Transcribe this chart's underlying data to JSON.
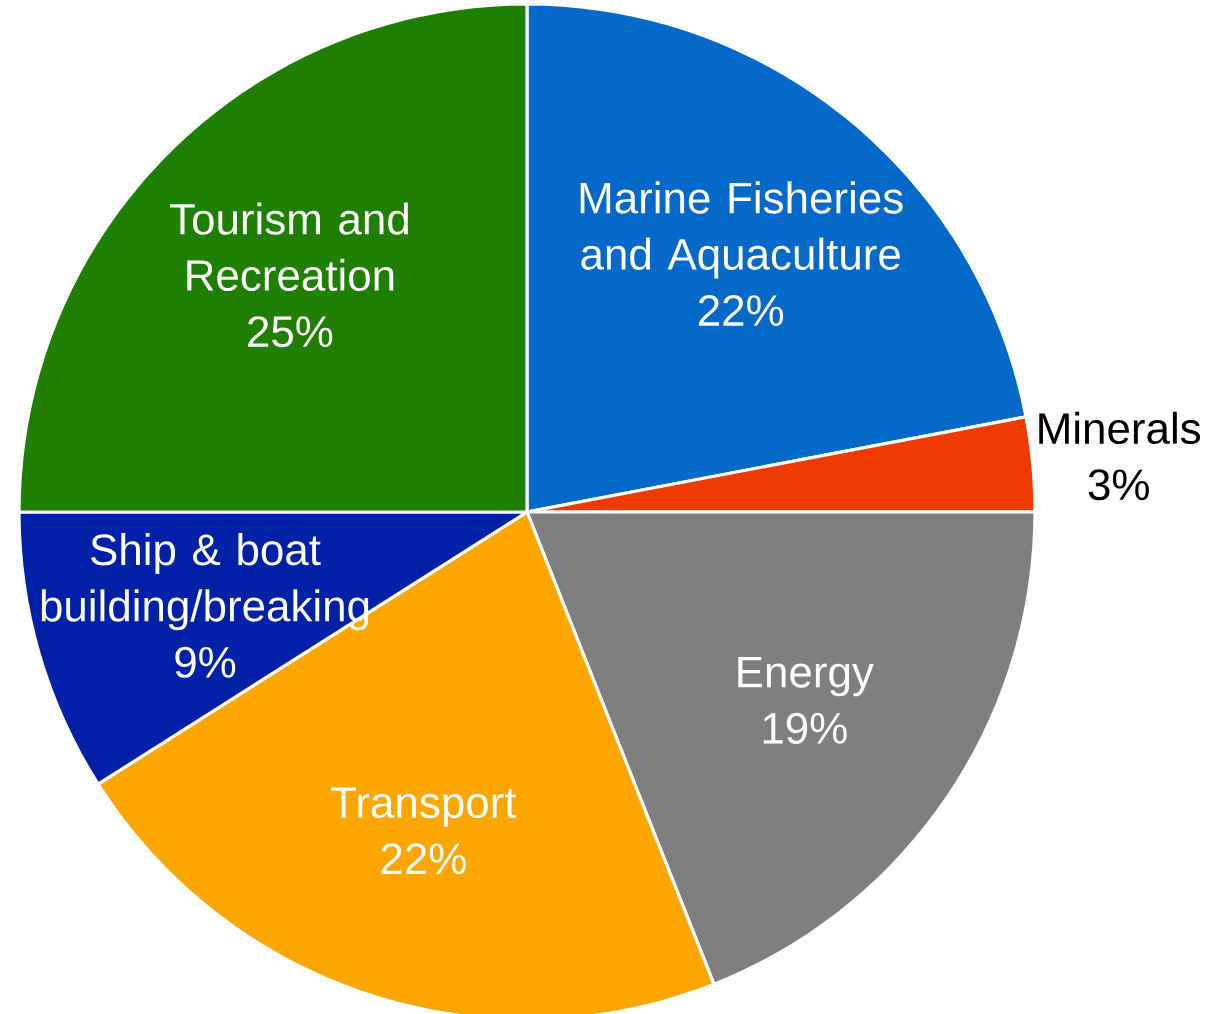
{
  "chart_data": {
    "type": "pie",
    "categories": [
      "Marine Fisheries and Aquaculture",
      "Minerals",
      "Energy",
      "Transport",
      "Ship & boat building/breaking",
      "Tourism and Recreation"
    ],
    "values": [
      22,
      3,
      19,
      22,
      9,
      25
    ],
    "colors": [
      "#0569c9",
      "#ee3a00",
      "#7f7f7f",
      "#fda600",
      "#0020a8",
      "#1f7f00"
    ],
    "value_labels": [
      "22%",
      "3%",
      "19%",
      "22%",
      "9%",
      "25%"
    ]
  }
}
